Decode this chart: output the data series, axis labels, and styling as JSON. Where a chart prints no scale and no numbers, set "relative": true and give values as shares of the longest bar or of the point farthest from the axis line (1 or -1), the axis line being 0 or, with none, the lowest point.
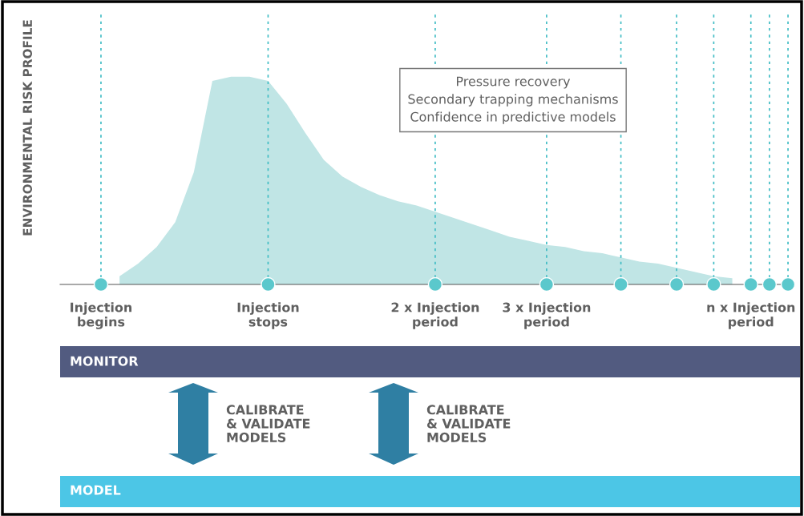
{
  "chart_data": {
    "type": "area",
    "relative": true,
    "ylabel": "ENVIRONMENTAL RISK PROFILE",
    "categories": [
      null,
      null,
      "Injection\nbegins",
      null,
      null,
      null,
      null,
      null,
      null,
      null,
      null,
      "Injection\nstops",
      null,
      null,
      null,
      null,
      null,
      null,
      null,
      null,
      "2 x Injection\nperiod",
      null,
      null,
      null,
      null,
      null,
      "3 x Injection\nperiod",
      null,
      null,
      null,
      null,
      null,
      null,
      null,
      null,
      null,
      null,
      "n x Injection\nperiod",
      null,
      null
    ],
    "series": [
      {
        "color": "#c0e5e5",
        "values": [
          null,
          null,
          null,
          0.04,
          0.1,
          0.18,
          0.3,
          0.54,
          0.98,
          1.0,
          1.0,
          0.98,
          0.87,
          0.73,
          0.6,
          0.52,
          0.47,
          0.43,
          0.4,
          0.38,
          0.35,
          0.32,
          0.29,
          0.26,
          0.23,
          0.21,
          0.19,
          0.18,
          0.16,
          0.15,
          0.13,
          0.11,
          0.1,
          0.08,
          0.06,
          0.04,
          0.03,
          null,
          null,
          null
        ]
      },
      {
        "type": "scatter",
        "color": "#5bc8cc",
        "values": [
          null,
          null,
          0,
          null,
          null,
          null,
          null,
          null,
          null,
          null,
          null,
          0,
          null,
          null,
          null,
          null,
          null,
          null,
          null,
          null,
          0,
          null,
          null,
          null,
          null,
          null,
          0,
          null,
          null,
          null,
          0,
          null,
          null,
          0,
          null,
          0,
          null,
          0,
          0,
          0
        ]
      }
    ],
    "grid": "x",
    "tick_labels": "x",
    "annotations": [
      "Pressure recovery\nSecondary trapping mechanisms\nConfidence in predictive models",
      "MONITOR",
      "CALIBRATE\n& VALIDATE\nMODELS",
      "CALIBRATE\n& VALIDATE\nMODELS",
      "MODEL"
    ]
  }
}
